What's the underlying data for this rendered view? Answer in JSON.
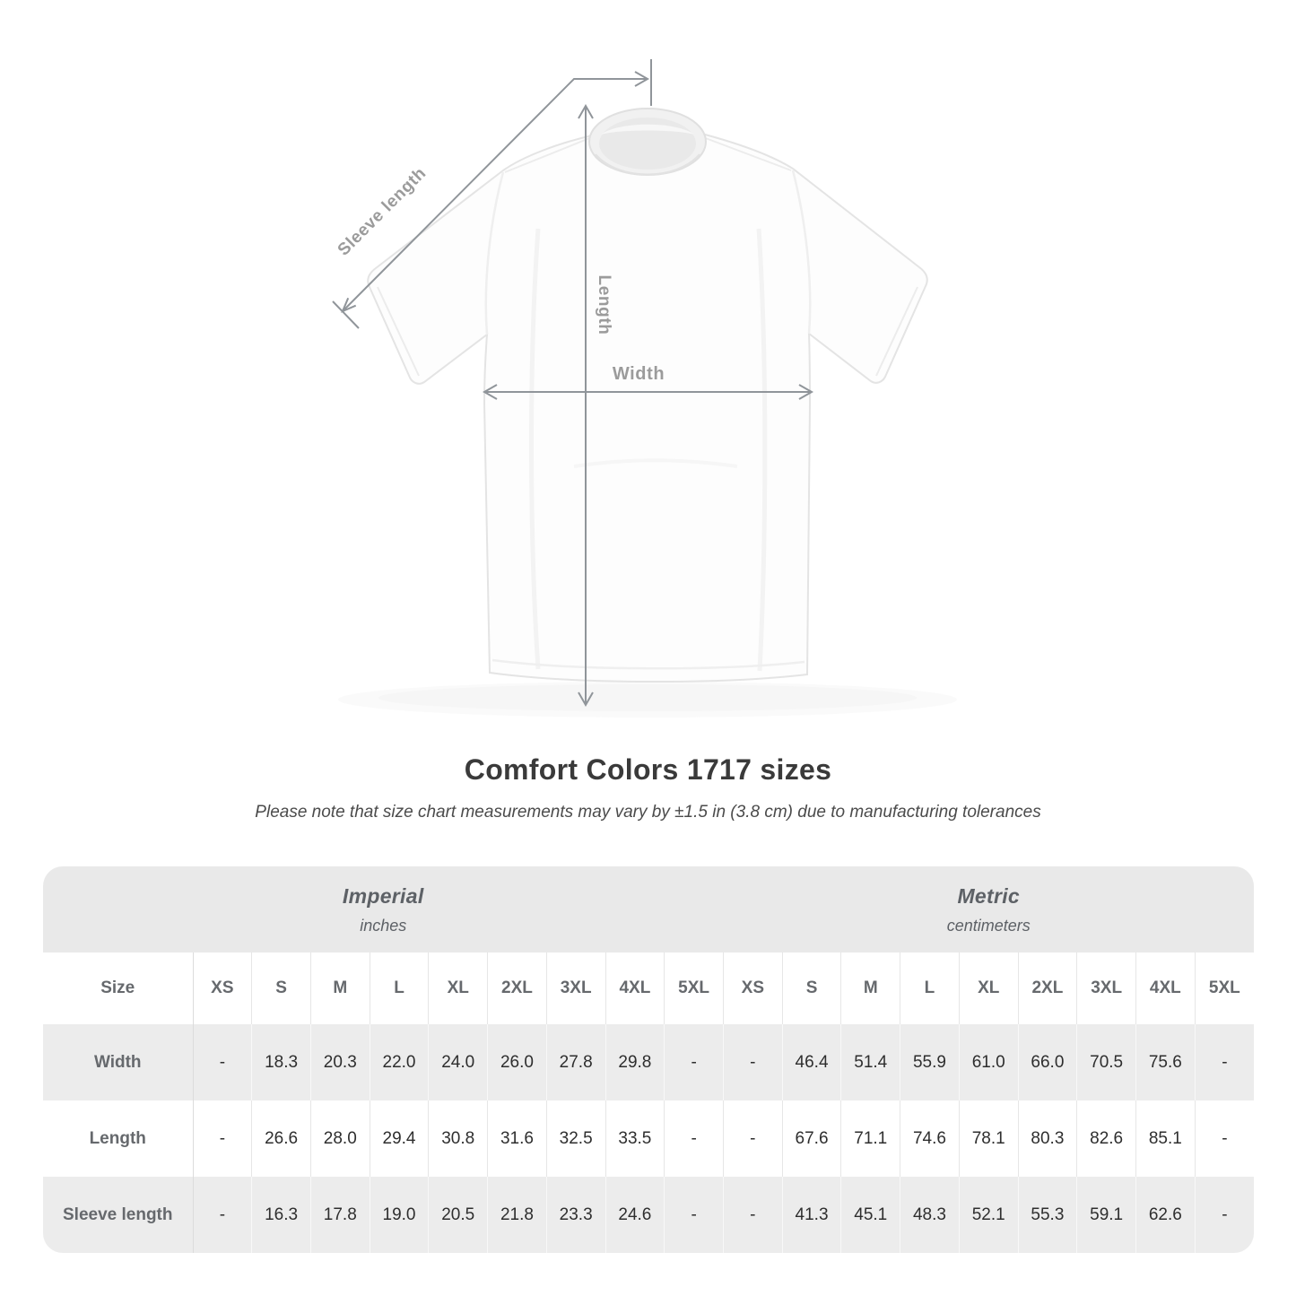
{
  "header": {
    "title": "Comfort Colors 1717 sizes",
    "note": "Please note that size chart measurements may vary by ±1.5 in (3.8 cm) due to manufacturing tolerances"
  },
  "diagram": {
    "labels": {
      "sleeve_length": "Sleeve length",
      "length": "Length",
      "width": "Width"
    },
    "colors": {
      "annotation_line": "#90959a",
      "annotation_label": "#9b9b9b"
    }
  },
  "table": {
    "size_label": "Size",
    "unit_groups": [
      {
        "name": "Imperial",
        "unit": "inches"
      },
      {
        "name": "Metric",
        "unit": "centimeters"
      }
    ],
    "sizes": [
      "XS",
      "S",
      "M",
      "L",
      "XL",
      "2XL",
      "3XL",
      "4XL",
      "5XL"
    ],
    "rows": [
      {
        "label": "Width",
        "imperial": [
          "-",
          "18.3",
          "20.3",
          "22.0",
          "24.0",
          "26.0",
          "27.8",
          "29.8",
          "-"
        ],
        "metric": [
          "-",
          "46.4",
          "51.4",
          "55.9",
          "61.0",
          "66.0",
          "70.5",
          "75.6",
          "-"
        ]
      },
      {
        "label": "Length",
        "imperial": [
          "-",
          "26.6",
          "28.0",
          "29.4",
          "30.8",
          "31.6",
          "32.5",
          "33.5",
          "-"
        ],
        "metric": [
          "-",
          "67.6",
          "71.1",
          "74.6",
          "78.1",
          "80.3",
          "82.6",
          "85.1",
          "-"
        ]
      },
      {
        "label": "Sleeve length",
        "imperial": [
          "-",
          "16.3",
          "17.8",
          "19.0",
          "20.5",
          "21.8",
          "23.3",
          "24.6",
          "-"
        ],
        "metric": [
          "-",
          "41.3",
          "45.1",
          "48.3",
          "52.1",
          "55.3",
          "59.1",
          "62.6",
          "-"
        ]
      }
    ]
  }
}
